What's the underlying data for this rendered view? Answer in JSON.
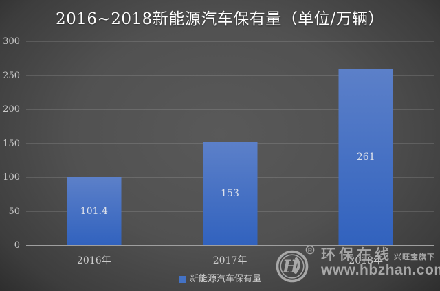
{
  "title": "2016~2018新能源汽车保有量（单位/万辆）",
  "chart_data": {
    "type": "bar",
    "title": "2016~2018新能源汽车保有量（单位/万辆）",
    "categories": [
      "2016年",
      "2017年",
      "2018年"
    ],
    "series": [
      {
        "name": "新能源汽车保有量",
        "values": [
          101.4,
          153,
          261
        ]
      }
    ],
    "value_labels": [
      "101.4",
      "153",
      "261"
    ],
    "xlabel": "",
    "ylabel": "",
    "ylim": [
      0,
      300
    ],
    "yticks": [
      0,
      50,
      100,
      150,
      200,
      250,
      300
    ],
    "grid": true,
    "legend_position": "bottom",
    "bar_color_top": "#5c80c9",
    "bar_color_bottom": "#3162be"
  },
  "legend": {
    "swatch_color": "#4472c4",
    "label": "新能源汽车保有量"
  },
  "watermark": {
    "logo": "hbzhan-circle-monogram",
    "registered_mark": "R",
    "brand": "环保在线",
    "sub_brand": "兴旺宝旗下",
    "url": "www.hbzhan.com"
  },
  "colors": {
    "background_center": "#595959",
    "background_edge": "#252525",
    "title_text": "#ffffff",
    "axis_line": "#9f9f9f",
    "gridline": "rgba(255,255,255,0.13)",
    "tick_text": "#c9c9c9",
    "bar_value_text": "#dde1ea",
    "watermark_text": "#b5b5b5"
  }
}
